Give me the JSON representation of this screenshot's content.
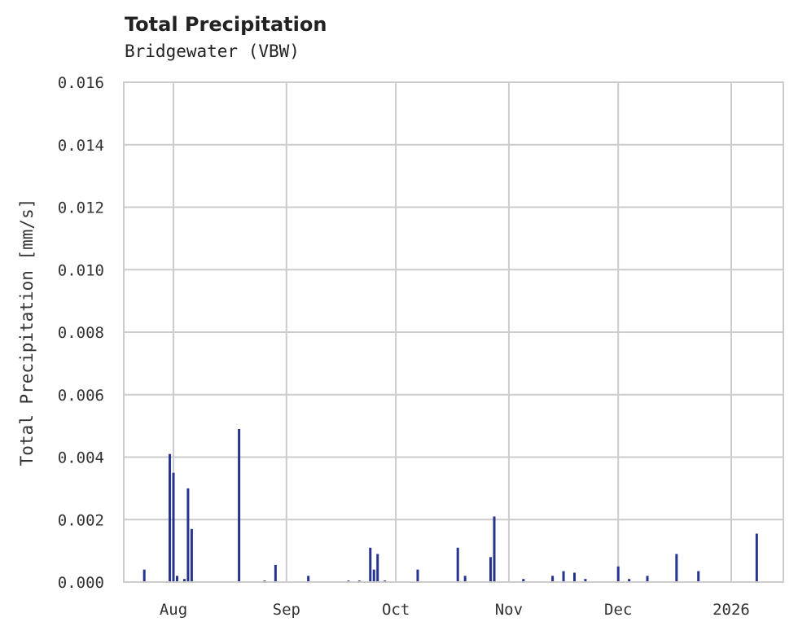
{
  "header": {
    "title": "Total Precipitation",
    "subtitle": "Bridgewater (VBW)"
  },
  "colors": {
    "bar": "#26338f",
    "grid": "#cccccc",
    "text": "#222222"
  },
  "chart_data": {
    "type": "bar",
    "title": "Total Precipitation",
    "subtitle": "Bridgewater (VBW)",
    "xlabel": "",
    "ylabel": "Total Precipitation [mm/s]",
    "ylim": [
      0,
      0.016
    ],
    "yticks": [
      "0.000",
      "0.002",
      "0.004",
      "0.006",
      "0.008",
      "0.010",
      "0.012",
      "0.014",
      "0.016"
    ],
    "xticks": [
      "Aug",
      "Sep",
      "Oct",
      "Nov",
      "Dec",
      "2026"
    ],
    "grid": true,
    "legend": null,
    "x": [
      "2025-07-24",
      "2025-07-31",
      "2025-08-01",
      "2025-08-02",
      "2025-08-04",
      "2025-08-05",
      "2025-08-06",
      "2025-08-13",
      "2025-08-19",
      "2025-08-26",
      "2025-08-29",
      "2025-09-07",
      "2025-09-18",
      "2025-09-21",
      "2025-09-24",
      "2025-09-25",
      "2025-09-26",
      "2025-09-28",
      "2025-10-07",
      "2025-10-18",
      "2025-10-20",
      "2025-10-27",
      "2025-10-28",
      "2025-11-05",
      "2025-11-13",
      "2025-11-16",
      "2025-11-19",
      "2025-11-22",
      "2025-12-01",
      "2025-12-04",
      "2025-12-09",
      "2025-12-17",
      "2025-12-23",
      "2026-01-08"
    ],
    "values": [
      0.0004,
      0.0041,
      0.0035,
      0.0002,
      0.0001,
      0.003,
      0.0017,
      2e-05,
      0.0049,
      5e-05,
      0.00055,
      0.0002,
      5e-05,
      5e-05,
      0.0011,
      0.0004,
      0.0009,
      5e-05,
      0.0004,
      0.0011,
      0.0002,
      0.0008,
      0.0021,
      0.0001,
      0.0002,
      0.00035,
      0.0003,
      0.0001,
      0.0005,
      0.0001,
      0.0002,
      0.0009,
      0.00035,
      0.00155
    ]
  }
}
